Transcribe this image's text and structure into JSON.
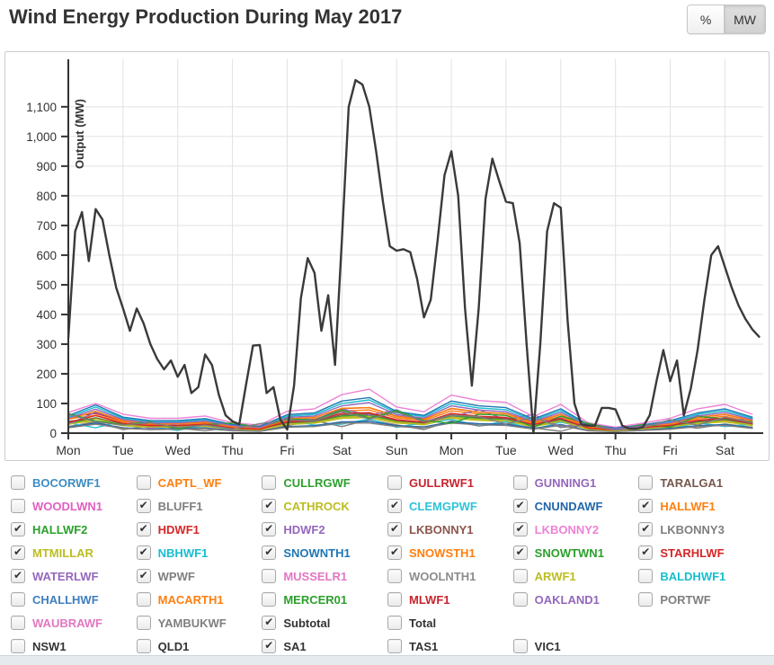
{
  "header": {
    "title": "Wind Energy Production During May 2017",
    "unit_toggle": {
      "options": [
        "%",
        "MW"
      ],
      "active": "MW"
    }
  },
  "chart_data": {
    "type": "line",
    "title": "Wind Energy Production During May 2017",
    "ylabel": "Output (MW)",
    "xlabel": "",
    "grid": true,
    "legend_position": "below-as-checkbox-grid",
    "x_tick_labels": [
      "Mon",
      "Tue",
      "Wed",
      "Thu",
      "Fri",
      "Sat",
      "Sun",
      "Mon",
      "Tue",
      "Wed",
      "Thu",
      "Fri",
      "Sat"
    ],
    "x_tick_positions_days": [
      0,
      1,
      2,
      3,
      4,
      5,
      6,
      7,
      8,
      9,
      10,
      11,
      12
    ],
    "x_range_days": [
      0,
      12.7
    ],
    "y_tick_values": [
      0,
      100,
      200,
      300,
      400,
      500,
      600,
      700,
      800,
      900,
      1000,
      1100
    ],
    "y_tick_labels": [
      "0",
      "100",
      "200",
      "300",
      "400",
      "500",
      "600",
      "700",
      "800",
      "900",
      "1,000",
      "1,100"
    ],
    "y_range": [
      0,
      1260
    ],
    "series": [
      {
        "name": "BLUFF1",
        "color": "#7f7f7f",
        "line_width": 1.4,
        "step_days": 0.5,
        "values": [
          22,
          38,
          12,
          25,
          17,
          8,
          20,
          10,
          25,
          42,
          22,
          45,
          28,
          12,
          41,
          24,
          33,
          18,
          6,
          32,
          10,
          12,
          27,
          17,
          31,
          20
        ]
      },
      {
        "name": "CATHROCK",
        "color": "#bcbd22",
        "line_width": 1.4,
        "step_days": 0.5,
        "values": [
          33,
          40,
          25,
          19,
          20,
          23,
          13,
          10,
          29,
          33,
          50,
          52,
          34,
          28,
          50,
          43,
          40,
          22,
          38,
          13,
          7,
          14,
          20,
          32,
          38,
          25
        ]
      },
      {
        "name": "CLEMGPWF",
        "color": "#2fc3d8",
        "line_width": 1.4,
        "step_days": 0.5,
        "values": [
          35,
          18,
          41,
          22,
          9,
          27,
          12,
          21,
          46,
          27,
          30,
          48,
          20,
          35,
          46,
          26,
          39,
          12,
          37,
          20,
          6,
          19,
          13,
          35,
          22,
          30
        ]
      },
      {
        "name": "CNUNDAWF",
        "color": "#2266aa",
        "line_width": 1.4,
        "step_days": 0.5,
        "values": [
          20,
          34,
          18,
          14,
          15,
          18,
          9,
          7,
          22,
          25,
          38,
          39,
          25,
          21,
          38,
          32,
          30,
          16,
          29,
          9,
          5,
          11,
          16,
          25,
          29,
          18
        ]
      },
      {
        "name": "HALLWF1",
        "color": "#ff7f0e",
        "line_width": 1.4,
        "step_days": 0.5,
        "values": [
          48,
          60,
          38,
          29,
          30,
          34,
          20,
          15,
          44,
          48,
          75,
          78,
          51,
          42,
          75,
          65,
          60,
          33,
          57,
          20,
          12,
          20,
          30,
          48,
          57,
          38
        ]
      },
      {
        "name": "HALLWF2",
        "color": "#2ca02c",
        "line_width": 1.4,
        "step_days": 0.5,
        "values": [
          32,
          52,
          29,
          22,
          23,
          27,
          15,
          12,
          34,
          38,
          58,
          60,
          40,
          33,
          58,
          50,
          46,
          25,
          44,
          15,
          9,
          16,
          23,
          37,
          44,
          29
        ]
      },
      {
        "name": "HDWF1",
        "color": "#d62728",
        "line_width": 1.4,
        "step_days": 0.5,
        "values": [
          55,
          66,
          42,
          31,
          33,
          38,
          22,
          17,
          48,
          53,
          83,
          86,
          57,
          47,
          83,
          71,
          66,
          37,
          63,
          22,
          12,
          22,
          33,
          53,
          63,
          42
        ]
      },
      {
        "name": "HDWF2",
        "color": "#9467bd",
        "line_width": 1.4,
        "step_days": 0.5,
        "values": [
          30,
          70,
          44,
          16,
          31,
          40,
          10,
          21,
          50,
          45,
          82,
          60,
          79,
          35,
          54,
          79,
          45,
          63,
          21,
          35,
          12,
          31,
          21,
          60,
          40,
          50
        ]
      },
      {
        "name": "LKBONNY1",
        "color": "#8c564b",
        "line_width": 1.4,
        "step_days": 0.5,
        "values": [
          40,
          50,
          31,
          24,
          25,
          28,
          16,
          13,
          36,
          40,
          62,
          65,
          42,
          35,
          62,
          53,
          50,
          28,
          47,
          16,
          9,
          17,
          25,
          40,
          47,
          31
        ]
      },
      {
        "name": "LKBONNY2",
        "color": "#ee82d5",
        "line_width": 1.4,
        "step_days": 0.5,
        "values": [
          70,
          100,
          64,
          50,
          50,
          58,
          35,
          27,
          74,
          82,
          130,
          148,
          88,
          72,
          128,
          110,
          104,
          56,
          97,
          35,
          20,
          34,
          50,
          82,
          97,
          64
        ]
      },
      {
        "name": "LKBONNY3",
        "color": "#7f7f7f",
        "line_width": 1.4,
        "step_days": 0.5,
        "values": [
          18,
          30,
          16,
          12,
          13,
          15,
          8,
          6,
          20,
          22,
          34,
          34,
          22,
          18,
          34,
          28,
          26,
          14,
          26,
          8,
          5,
          9,
          13,
          22,
          26,
          16
        ]
      },
      {
        "name": "MTMILLAR",
        "color": "#bcbd22",
        "line_width": 1.4,
        "step_days": 0.5,
        "values": [
          29,
          48,
          27,
          21,
          21,
          25,
          14,
          11,
          31,
          35,
          54,
          56,
          37,
          30,
          54,
          46,
          43,
          24,
          41,
          14,
          8,
          15,
          21,
          34,
          41,
          27
        ]
      },
      {
        "name": "NBHWF1",
        "color": "#17becf",
        "line_width": 1.4,
        "step_days": 0.5,
        "values": [
          54,
          88,
          50,
          38,
          38,
          45,
          27,
          21,
          57,
          63,
          100,
          112,
          68,
          56,
          100,
          85,
          79,
          44,
          76,
          27,
          16,
          26,
          38,
          63,
          76,
          50
        ]
      },
      {
        "name": "SNOWNTH1",
        "color": "#1f77b4",
        "line_width": 1.4,
        "step_days": 0.5,
        "values": [
          59,
          95,
          54,
          42,
          42,
          49,
          29,
          23,
          62,
          68,
          108,
          120,
          73,
          60,
          108,
          92,
          86,
          48,
          82,
          29,
          17,
          28,
          42,
          68,
          82,
          54
        ]
      },
      {
        "name": "SNOWSTH1",
        "color": "#ff7f0e",
        "line_width": 1.4,
        "step_days": 0.5,
        "values": [
          46,
          74,
          42,
          32,
          32,
          38,
          22,
          17,
          48,
          53,
          84,
          86,
          56,
          46,
          84,
          71,
          66,
          36,
          64,
          22,
          13,
          23,
          32,
          53,
          64,
          42
        ]
      },
      {
        "name": "SNOWTWN1",
        "color": "#2ca02c",
        "line_width": 1.4,
        "step_days": 0.5,
        "values": [
          66,
          41,
          29,
          38,
          15,
          29,
          34,
          20,
          48,
          44,
          78,
          51,
          76,
          42,
          33,
          64,
          60,
          20,
          57,
          33,
          11,
          29,
          20,
          57,
          48,
          38
        ]
      },
      {
        "name": "STARHLWF",
        "color": "#d62728",
        "line_width": 1.4,
        "step_days": 0.5,
        "values": [
          36,
          59,
          33,
          25,
          26,
          30,
          17,
          13,
          39,
          43,
          67,
          69,
          45,
          37,
          67,
          57,
          53,
          29,
          51,
          17,
          10,
          18,
          26,
          43,
          51,
          33
        ]
      },
      {
        "name": "WATERLWF",
        "color": "#9467bd",
        "line_width": 1.4,
        "step_days": 0.5,
        "values": [
          50,
          81,
          46,
          35,
          35,
          41,
          25,
          19,
          53,
          58,
          92,
          103,
          62,
          51,
          92,
          78,
          72,
          40,
          70,
          25,
          14,
          24,
          35,
          58,
          70,
          46
        ]
      },
      {
        "name": "WPWF",
        "color": "#7f7f7f",
        "line_width": 1.4,
        "step_days": 0.5,
        "values": [
          63,
          38,
          27,
          35,
          19,
          27,
          14,
          32,
          45,
          41,
          73,
          48,
          71,
          39,
          60,
          56,
          31,
          54,
          19,
          27,
          10,
          19,
          45,
          27,
          54,
          35
        ]
      },
      {
        "name": "Subtotal",
        "color": "#3a3a3a",
        "line_width": 2.4,
        "step_days": 0.125,
        "values": [
          320,
          680,
          745,
          580,
          755,
          720,
          600,
          490,
          420,
          345,
          420,
          370,
          300,
          250,
          215,
          245,
          190,
          230,
          135,
          155,
          265,
          230,
          130,
          60,
          40,
          30,
          165,
          295,
          297,
          135,
          155,
          45,
          12,
          160,
          455,
          590,
          540,
          345,
          465,
          230,
          650,
          1100,
          1190,
          1175,
          1100,
          950,
          780,
          630,
          615,
          620,
          610,
          520,
          390,
          450,
          650,
          870,
          950,
          800,
          420,
          160,
          420,
          790,
          925,
          850,
          780,
          775,
          640,
          300,
          0,
          300,
          680,
          775,
          760,
          380,
          100,
          30,
          25,
          25,
          85,
          85,
          80,
          25,
          15,
          15,
          20,
          60,
          175,
          280,
          175,
          245,
          60,
          150,
          280,
          450,
          600,
          630,
          560,
          490,
          430,
          385,
          350,
          325
        ]
      }
    ]
  },
  "legend": {
    "columns": 6,
    "items": [
      {
        "label": "BOCORWF1",
        "color": "#3d8dc4",
        "checked": false
      },
      {
        "label": "CAPTL_WF",
        "color": "#ff7f0e",
        "checked": false
      },
      {
        "label": "CULLRGWF",
        "color": "#2ca02c",
        "checked": false
      },
      {
        "label": "GULLRWF1",
        "color": "#c7242e",
        "checked": false
      },
      {
        "label": "GUNNING1",
        "color": "#9467bd",
        "checked": false
      },
      {
        "label": "TARALGA1",
        "color": "#75584d",
        "checked": false
      },
      {
        "label": "WOODLWN1",
        "color": "#e060c0",
        "checked": false
      },
      {
        "label": "BLUFF1",
        "color": "#7f7f7f",
        "checked": true
      },
      {
        "label": "CATHROCK",
        "color": "#bcbd22",
        "checked": true
      },
      {
        "label": "CLEMGPWF",
        "color": "#2fc3d8",
        "checked": true
      },
      {
        "label": "CNUNDAWF",
        "color": "#2266aa",
        "checked": true
      },
      {
        "label": "HALLWF1",
        "color": "#ff7f0e",
        "checked": true
      },
      {
        "label": "HALLWF2",
        "color": "#2ca02c",
        "checked": true
      },
      {
        "label": "HDWF1",
        "color": "#d62728",
        "checked": true
      },
      {
        "label": "HDWF2",
        "color": "#9467bd",
        "checked": true
      },
      {
        "label": "LKBONNY1",
        "color": "#8c564b",
        "checked": true
      },
      {
        "label": "LKBONNY2",
        "color": "#ee82d5",
        "checked": true
      },
      {
        "label": "LKBONNY3",
        "color": "#7f7f7f",
        "checked": true
      },
      {
        "label": "MTMILLAR",
        "color": "#bcbd22",
        "checked": true
      },
      {
        "label": "NBHWF1",
        "color": "#17becf",
        "checked": true
      },
      {
        "label": "SNOWNTH1",
        "color": "#1f77b4",
        "checked": true
      },
      {
        "label": "SNOWSTH1",
        "color": "#ff7f0e",
        "checked": true
      },
      {
        "label": "SNOWTWN1",
        "color": "#2ca02c",
        "checked": true
      },
      {
        "label": "STARHLWF",
        "color": "#d62728",
        "checked": true
      },
      {
        "label": "WATERLWF",
        "color": "#9467bd",
        "checked": true
      },
      {
        "label": "WPWF",
        "color": "#7f7f7f",
        "checked": true
      },
      {
        "label": "MUSSELR1",
        "color": "#e377c2",
        "checked": false
      },
      {
        "label": "WOOLNTH1",
        "color": "#8c8c8c",
        "checked": false
      },
      {
        "label": "ARWF1",
        "color": "#bcbd22",
        "checked": false
      },
      {
        "label": "BALDHWF1",
        "color": "#17becf",
        "checked": false
      },
      {
        "label": "CHALLHWF",
        "color": "#3f7fc1",
        "checked": false
      },
      {
        "label": "MACARTH1",
        "color": "#ff7f0e",
        "checked": false
      },
      {
        "label": "MERCER01",
        "color": "#2ca02c",
        "checked": false
      },
      {
        "label": "MLWF1",
        "color": "#c7242e",
        "checked": false
      },
      {
        "label": "OAKLAND1",
        "color": "#9467bd",
        "checked": false
      },
      {
        "label": "PORTWF",
        "color": "#7f7f7f",
        "checked": false
      },
      {
        "label": "WAUBRAWF",
        "color": "#e377c2",
        "checked": false
      },
      {
        "label": "YAMBUKWF",
        "color": "#7f7f7f",
        "checked": false
      },
      {
        "label": "Subtotal",
        "color": "#333333",
        "checked": true
      },
      {
        "label": "Total",
        "color": "#333333",
        "checked": false
      },
      {
        "label": "",
        "color": "",
        "checked": false,
        "spacer": true
      },
      {
        "label": "",
        "color": "",
        "checked": false,
        "spacer": true
      },
      {
        "label": "NSW1",
        "color": "#333333",
        "checked": false
      },
      {
        "label": "QLD1",
        "color": "#333333",
        "checked": false
      },
      {
        "label": "SA1",
        "color": "#333333",
        "checked": true
      },
      {
        "label": "TAS1",
        "color": "#333333",
        "checked": false
      },
      {
        "label": "VIC1",
        "color": "#333333",
        "checked": false
      },
      {
        "label": "",
        "color": "",
        "checked": false,
        "spacer": true
      }
    ]
  }
}
